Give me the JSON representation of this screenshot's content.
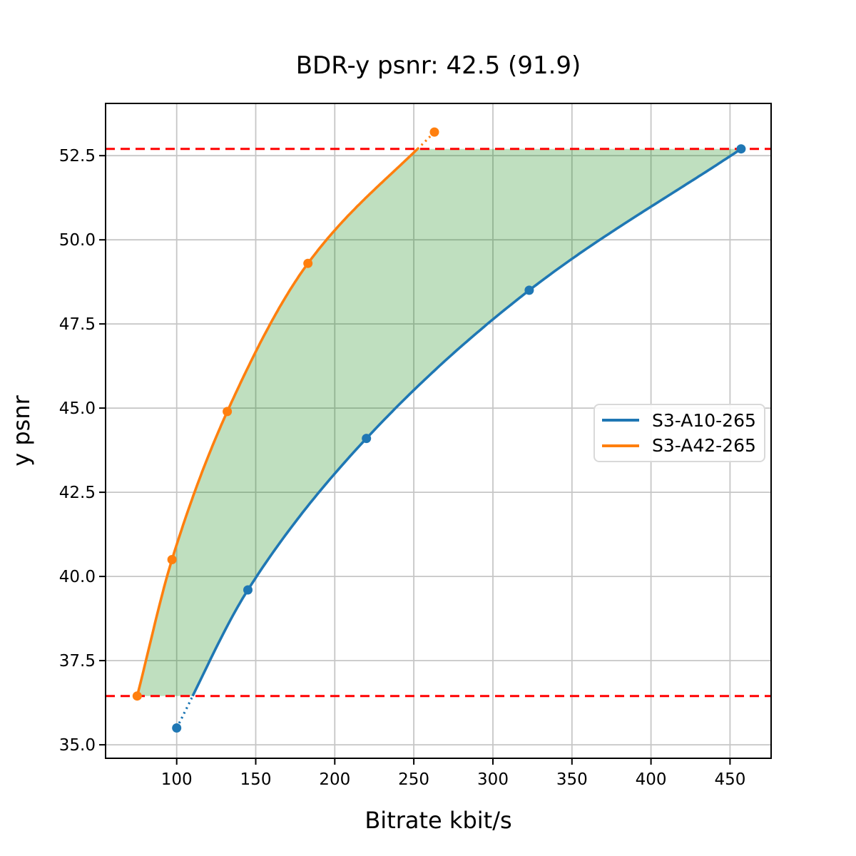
{
  "chart_data": {
    "type": "line",
    "title": "BDR-y psnr: 42.5 (91.9)",
    "xlabel": "Bitrate kbit/s",
    "ylabel": "y psnr",
    "xlim": [
      55,
      476
    ],
    "ylim": [
      34.6,
      54.05
    ],
    "grid": true,
    "grid_color": "#c6c6c6",
    "spine_color": "#000000",
    "x_ticks": [
      100,
      150,
      200,
      250,
      300,
      350,
      400,
      450
    ],
    "x_tick_labels": [
      "100",
      "150",
      "200",
      "250",
      "300",
      "350",
      "400",
      "450"
    ],
    "y_ticks": [
      35.0,
      37.5,
      40.0,
      42.5,
      45.0,
      47.5,
      50.0,
      52.5
    ],
    "y_tick_labels": [
      "35.0",
      "37.5",
      "40.0",
      "42.5",
      "45.0",
      "47.5",
      "50.0",
      "52.5"
    ],
    "legend_position": "center-right",
    "series": [
      {
        "name": "S3-A10-265",
        "color": "#1f77b4",
        "points": [
          [
            100,
            35.5
          ],
          [
            145,
            39.6
          ],
          [
            220,
            44.1
          ],
          [
            323,
            48.5
          ],
          [
            457,
            52.7
          ]
        ]
      },
      {
        "name": "S3-A42-265",
        "color": "#ff7f0e",
        "points": [
          [
            75,
            36.45
          ],
          [
            97,
            40.5
          ],
          [
            132,
            44.9
          ],
          [
            183,
            49.3
          ],
          [
            263,
            53.2
          ]
        ]
      }
    ],
    "overlap_lines": {
      "low": 36.45,
      "high": 52.7,
      "color": "#ff0000",
      "style": "dashed"
    },
    "fill_between": {
      "color": "#008000",
      "opacity": 0.25
    }
  }
}
